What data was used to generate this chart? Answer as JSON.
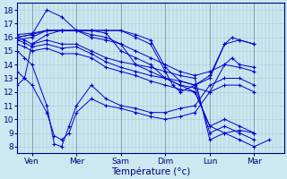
{
  "xlabel": "Température (°c)",
  "xlim": [
    0,
    72
  ],
  "ylim": [
    7.5,
    18.5
  ],
  "yticks": [
    8,
    9,
    10,
    11,
    12,
    13,
    14,
    15,
    16,
    17,
    18
  ],
  "xtick_positions": [
    4,
    16,
    28,
    40,
    52,
    64
  ],
  "xtick_labels": [
    "Ven",
    "Mer",
    "Sam",
    "Dim",
    "Lun",
    "Mar"
  ],
  "bg_color": "#cce8f0",
  "line_color": "#0000cc",
  "grid_color_v": "#99bbcc",
  "grid_color_h": "#aaccdd",
  "series": [
    [
      0,
      16.0,
      2,
      15.8,
      4,
      15.5,
      8,
      15.8,
      12,
      15.5,
      16,
      15.5,
      20,
      15.0,
      24,
      14.5,
      28,
      14.2,
      32,
      14.0,
      36,
      13.8,
      40,
      13.5,
      44,
      13.2,
      48,
      13.0,
      52,
      8.5,
      56,
      9.0,
      60,
      8.5,
      64,
      8.0,
      68,
      8.5
    ],
    [
      0,
      15.8,
      2,
      15.6,
      4,
      15.3,
      8,
      15.5,
      12,
      15.2,
      16,
      15.3,
      20,
      14.8,
      24,
      14.2,
      28,
      13.8,
      32,
      13.5,
      36,
      13.2,
      40,
      13.0,
      44,
      12.8,
      48,
      12.5,
      52,
      9.0,
      56,
      9.5,
      60,
      9.0,
      64,
      8.5
    ],
    [
      0,
      15.5,
      2,
      15.3,
      4,
      15.0,
      8,
      15.2,
      12,
      14.8,
      16,
      14.8,
      20,
      14.5,
      24,
      13.8,
      28,
      13.5,
      32,
      13.2,
      36,
      12.8,
      40,
      12.5,
      44,
      12.2,
      48,
      12.0,
      52,
      9.5,
      56,
      10.0,
      60,
      9.5,
      64,
      9.0
    ],
    [
      0,
      16.0,
      4,
      16.2,
      8,
      18.0,
      12,
      17.5,
      16,
      16.5,
      20,
      16.0,
      24,
      15.8,
      28,
      15.5,
      32,
      15.0,
      36,
      14.5,
      40,
      14.0,
      44,
      13.5,
      48,
      13.2,
      52,
      13.5,
      56,
      14.0,
      60,
      13.8,
      64,
      13.5
    ],
    [
      0,
      15.0,
      2,
      14.5,
      4,
      14.0,
      8,
      11.0,
      10,
      8.2,
      12,
      8.0,
      14,
      9.5,
      16,
      11.0,
      20,
      12.5,
      24,
      11.5,
      28,
      11.0,
      32,
      10.8,
      36,
      10.5,
      40,
      10.5,
      44,
      10.8,
      48,
      11.0,
      52,
      12.5,
      56,
      13.0,
      60,
      13.0,
      64,
      12.5
    ],
    [
      0,
      13.5,
      2,
      13.0,
      4,
      12.5,
      8,
      10.5,
      10,
      8.8,
      12,
      8.5,
      14,
      9.0,
      16,
      10.5,
      20,
      11.5,
      24,
      11.0,
      28,
      10.8,
      32,
      10.5,
      36,
      10.2,
      40,
      10.0,
      44,
      10.2,
      48,
      10.5,
      52,
      12.0,
      56,
      12.5,
      60,
      12.5,
      64,
      12.0
    ],
    [
      0,
      12.5,
      2,
      13.0,
      4,
      15.5,
      8,
      16.2,
      12,
      16.5,
      16,
      16.5,
      20,
      16.2,
      24,
      16.0,
      28,
      15.5,
      32,
      14.0,
      36,
      13.5,
      40,
      13.0,
      44,
      12.5,
      48,
      12.0,
      52,
      9.5,
      56,
      9.0,
      60,
      9.2,
      64,
      9.0
    ],
    [
      0,
      16.2,
      4,
      16.3,
      8,
      16.5,
      12,
      16.5,
      16,
      16.5,
      20,
      16.5,
      24,
      16.3,
      28,
      15.0,
      32,
      14.5,
      36,
      14.0,
      40,
      13.0,
      44,
      12.5,
      48,
      12.3,
      52,
      12.0,
      56,
      14.0,
      58,
      14.5,
      60,
      14.0,
      64,
      13.8
    ],
    [
      0,
      16.0,
      4,
      16.2,
      8,
      16.5,
      12,
      16.5,
      16,
      16.5,
      20,
      16.5,
      24,
      16.5,
      28,
      16.5,
      32,
      16.0,
      36,
      15.5,
      40,
      13.5,
      42,
      12.5,
      44,
      12.0,
      48,
      12.5,
      52,
      13.0,
      56,
      15.5,
      58,
      16.0,
      60,
      15.8,
      64,
      15.5
    ],
    [
      0,
      15.8,
      4,
      16.0,
      8,
      16.5,
      12,
      16.5,
      16,
      16.5,
      20,
      16.5,
      24,
      16.5,
      28,
      16.5,
      32,
      16.2,
      36,
      15.8,
      40,
      13.8,
      44,
      12.8,
      48,
      12.5,
      52,
      13.2,
      56,
      15.5,
      60,
      15.8,
      64,
      15.5
    ]
  ]
}
